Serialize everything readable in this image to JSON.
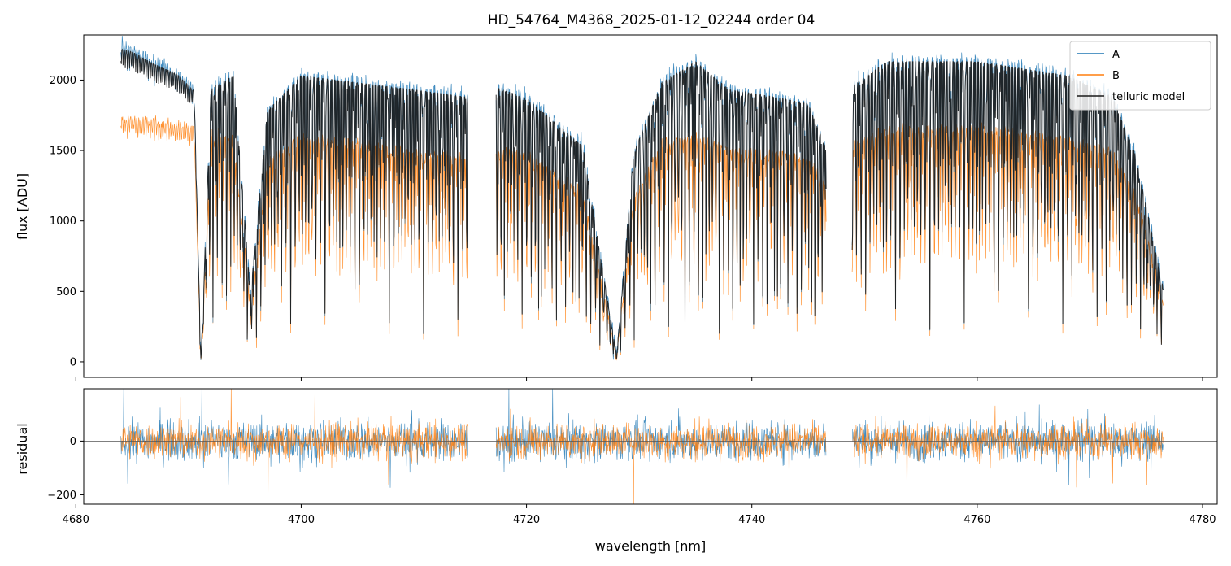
{
  "title": "HD_54764_M4368_2025-01-12_02244  order 04",
  "colors": {
    "A": "#1f77b4",
    "B": "#ff7f0e",
    "model": "#1a1a1a"
  },
  "chart_data": [
    {
      "type": "line",
      "panel": "flux",
      "xlabel": "",
      "ylabel": "flux [ADU]",
      "xlim": [
        4680.7,
        4781.3
      ],
      "ylim": [
        -110,
        2320
      ],
      "xticks": [
        4680,
        4700,
        4720,
        4740,
        4760,
        4780
      ],
      "xticks_labeled": false,
      "yticks": [
        0,
        500,
        1000,
        1500,
        2000
      ],
      "ytick_labels": [
        "0",
        "500",
        "1000",
        "1500",
        "2000"
      ],
      "gaps": [
        [
          4714.8,
          4717.3
        ],
        [
          4746.6,
          4748.9
        ]
      ],
      "legend": {
        "placement": "top-right",
        "entries": [
          "A",
          "B",
          "telluric model"
        ]
      },
      "series": [
        {
          "name": "A",
          "x": [
            4684.0,
            4685.0,
            4687.0,
            4689.0,
            4690.5,
            4691.1,
            4692.0,
            4694.0,
            4695.5,
            4697.0,
            4700.0,
            4705.0,
            4710.0,
            4714.5,
            4717.5,
            4720.0,
            4725.0,
            4728.0,
            4729.5,
            4732.0,
            4735.0,
            4738.0,
            4742.0,
            4745.0,
            4746.5,
            4749.0,
            4752.0,
            4756.0,
            4760.0,
            4764.0,
            4768.0,
            4772.0,
            4774.0,
            4776.5
          ],
          "y": [
            2270,
            2230,
            2130,
            2060,
            1940,
            0,
            1960,
            2050,
            500,
            1800,
            2050,
            2000,
            1950,
            1900,
            1960,
            1890,
            1550,
            50,
            1500,
            2000,
            2150,
            1950,
            1900,
            1850,
            1550,
            1980,
            2150,
            2150,
            2150,
            2100,
            2050,
            1900,
            1500,
            550
          ]
        },
        {
          "name": "B",
          "x": [
            4684.0,
            4685.0,
            4687.0,
            4689.0,
            4690.5,
            4691.1,
            4692.0,
            4694.0,
            4695.5,
            4697.0,
            4700.0,
            4705.0,
            4710.0,
            4714.5,
            4717.5,
            4720.0,
            4725.0,
            4728.0,
            4729.5,
            4732.0,
            4735.0,
            4738.0,
            4742.0,
            4745.0,
            4746.5,
            4749.0,
            4752.0,
            4756.0,
            4760.0,
            4764.0,
            4768.0,
            4772.0,
            4774.0,
            4776.5
          ],
          "y": [
            1720,
            1720,
            1700,
            1680,
            1640,
            0,
            1620,
            1580,
            400,
            1400,
            1600,
            1550,
            1480,
            1450,
            1510,
            1470,
            1200,
            40,
            1150,
            1550,
            1600,
            1500,
            1480,
            1450,
            1250,
            1560,
            1650,
            1650,
            1650,
            1620,
            1580,
            1480,
            1200,
            450
          ]
        },
        {
          "name": "telluric model",
          "x": [
            4684.0,
            4685.0,
            4687.0,
            4689.0,
            4690.5,
            4691.1,
            4692.0,
            4694.0,
            4695.5,
            4697.0,
            4700.0,
            4705.0,
            4710.0,
            4714.5,
            4717.5,
            4720.0,
            4725.0,
            4728.0,
            4729.5,
            4732.0,
            4735.0,
            4738.0,
            4742.0,
            4745.0,
            4746.5,
            4749.0,
            4752.0,
            4756.0,
            4760.0,
            4764.0,
            4768.0,
            4772.0,
            4774.0,
            4776.5
          ],
          "y": [
            2220,
            2200,
            2110,
            2040,
            1920,
            0,
            1940,
            2030,
            480,
            1780,
            2030,
            1980,
            1930,
            1880,
            1940,
            1870,
            1530,
            40,
            1480,
            1980,
            2130,
            1930,
            1880,
            1830,
            1530,
            1960,
            2130,
            2130,
            2130,
            2080,
            2030,
            1880,
            1480,
            530
          ]
        }
      ]
    },
    {
      "type": "line",
      "panel": "residual",
      "xlabel": "wavelength [nm]",
      "ylabel": "residual",
      "xlim": [
        4680.7,
        4781.3
      ],
      "ylim": [
        -235,
        195
      ],
      "xticks": [
        4680,
        4700,
        4720,
        4740,
        4760,
        4780
      ],
      "xtick_labels": [
        "4680",
        "4700",
        "4720",
        "4740",
        "4760",
        "4780"
      ],
      "yticks": [
        -200,
        0
      ],
      "ytick_labels": [
        "−200",
        "0"
      ],
      "reference_line": 0,
      "gaps": [
        [
          4714.8,
          4717.3
        ],
        [
          4746.6,
          4748.9
        ]
      ],
      "series": [
        {
          "name": "A",
          "x_range": [
            4684.0,
            4776.5
          ],
          "typical_spread": 60,
          "extreme_range": [
            -235,
            195
          ]
        },
        {
          "name": "B",
          "x_range": [
            4684.0,
            4776.5
          ],
          "typical_spread": 55,
          "extreme_range": [
            -235,
            195
          ]
        }
      ]
    }
  ]
}
